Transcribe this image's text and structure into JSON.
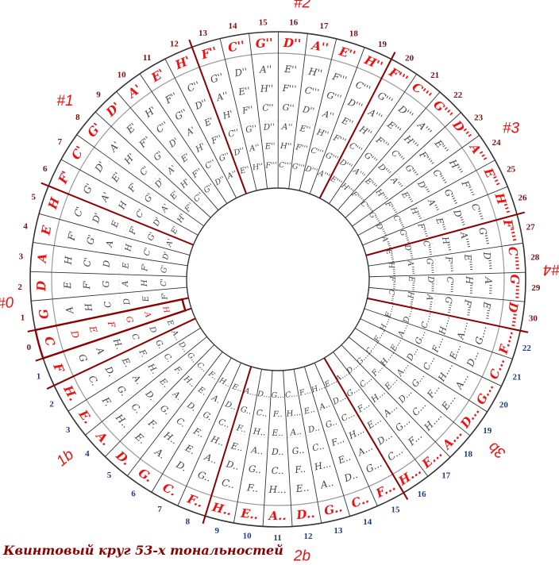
{
  "caption": "Квинтовый круг 53-х тональностей",
  "colors": {
    "tonic": "#ee1111",
    "sharp_number": "#7a1010",
    "flat_number": "#1f3a7a",
    "divider": "#8b0000",
    "line": "#333333",
    "note": "#444444"
  },
  "group_labels": [
    {
      "text": "#2",
      "angle": 5
    },
    {
      "text": "#1",
      "angle": 310
    },
    {
      "text": "#3",
      "angle": 57
    },
    {
      "text": "4#4",
      "angle": 88
    },
    {
      "text": "3b",
      "angle": 128
    },
    {
      "text": "2b",
      "angle": 175
    },
    {
      "text": "1b",
      "angle": 230
    },
    {
      "text": "4#0",
      "angle": 265
    }
  ],
  "sectors": [
    {
      "number": "0",
      "side": "sharp",
      "tonic": "C",
      "notes": [
        "D",
        "E",
        "F",
        "G",
        "A",
        "H"
      ]
    },
    {
      "number": "1",
      "side": "sharp",
      "tonic": "G",
      "notes": [
        "A",
        "H",
        "C",
        "D",
        "E",
        "F'"
      ]
    },
    {
      "number": "2",
      "side": "sharp",
      "tonic": "D",
      "notes": [
        "E",
        "F'",
        "G",
        "A",
        "H",
        "C'"
      ]
    },
    {
      "number": "3",
      "side": "sharp",
      "tonic": "A",
      "notes": [
        "H",
        "C'",
        "D",
        "E",
        "F'",
        "G'"
      ]
    },
    {
      "number": "4",
      "side": "sharp",
      "tonic": "E",
      "notes": [
        "F'",
        "G'",
        "A",
        "H",
        "C'",
        "D'"
      ]
    },
    {
      "number": "5",
      "side": "sharp",
      "tonic": "H",
      "notes": [
        "C'",
        "D'",
        "E",
        "F'",
        "G'",
        "A'"
      ]
    },
    {
      "number": "6",
      "side": "sharp",
      "tonic": "F'",
      "notes": [
        "G'",
        "A'",
        "H",
        "C'",
        "D'",
        "E'"
      ]
    },
    {
      "number": "7",
      "side": "sharp",
      "tonic": "C'",
      "notes": [
        "D'",
        "E'",
        "F'",
        "G'",
        "A'",
        "H'"
      ]
    },
    {
      "number": "8",
      "side": "sharp",
      "tonic": "G'",
      "notes": [
        "A'",
        "H'",
        "C'",
        "D'",
        "E'",
        "F''"
      ]
    },
    {
      "number": "9",
      "side": "sharp",
      "tonic": "D'",
      "notes": [
        "E'",
        "F''",
        "G'",
        "A'",
        "H'",
        "C''"
      ]
    },
    {
      "number": "10",
      "side": "sharp",
      "tonic": "A'",
      "notes": [
        "H'",
        "C''",
        "D'",
        "E'",
        "F''",
        "G''"
      ]
    },
    {
      "number": "11",
      "side": "sharp",
      "tonic": "E'",
      "notes": [
        "F''",
        "G''",
        "A'",
        "H'",
        "C''",
        "D''"
      ]
    },
    {
      "number": "12",
      "side": "sharp",
      "tonic": "H'",
      "notes": [
        "C''",
        "D''",
        "E'",
        "F''",
        "G''",
        "A''"
      ]
    },
    {
      "number": "13",
      "side": "sharp",
      "tonic": "F''",
      "notes": [
        "G''",
        "A''",
        "H'",
        "C''",
        "D''",
        "E''"
      ]
    },
    {
      "number": "14",
      "side": "sharp",
      "tonic": "C''",
      "notes": [
        "D''",
        "E''",
        "F''",
        "G''",
        "A''",
        "H''"
      ]
    },
    {
      "number": "15",
      "side": "sharp",
      "tonic": "G''",
      "notes": [
        "A''",
        "H''",
        "C''",
        "D''",
        "E''",
        "F'''"
      ]
    },
    {
      "number": "16",
      "side": "sharp",
      "tonic": "D''",
      "notes": [
        "E''",
        "F'''",
        "G''",
        "A''",
        "H''",
        "C'''"
      ]
    },
    {
      "number": "17",
      "side": "sharp",
      "tonic": "A''",
      "notes": [
        "H''",
        "C'''",
        "D''",
        "E''",
        "F'''",
        "G'''"
      ]
    },
    {
      "number": "18",
      "side": "sharp",
      "tonic": "E''",
      "notes": [
        "F'''",
        "G'''",
        "A''",
        "H''",
        "C'''",
        "D'''"
      ]
    },
    {
      "number": "19",
      "side": "sharp",
      "tonic": "H''",
      "notes": [
        "C'''",
        "D'''",
        "E''",
        "F'''",
        "G'''",
        "A'''"
      ]
    },
    {
      "number": "20",
      "side": "sharp",
      "tonic": "F'''",
      "notes": [
        "G'''",
        "A'''",
        "H''",
        "C'''",
        "D'''",
        "E'''"
      ]
    },
    {
      "number": "21",
      "side": "sharp",
      "tonic": "C'''",
      "notes": [
        "D'''",
        "E'''",
        "F'''",
        "G'''",
        "A'''",
        "H'''"
      ]
    },
    {
      "number": "22",
      "side": "sharp",
      "tonic": "G'''",
      "notes": [
        "A'''",
        "H'''",
        "C'''",
        "D'''",
        "E'''",
        "F''''"
      ]
    },
    {
      "number": "23",
      "side": "sharp",
      "tonic": "D'''",
      "notes": [
        "E'''",
        "F''''",
        "G'''",
        "A'''",
        "H'''",
        "C''''"
      ]
    },
    {
      "number": "24",
      "side": "sharp",
      "tonic": "A'''",
      "notes": [
        "H'''",
        "C''''",
        "D'''",
        "E'''",
        "F''''",
        "G''''"
      ]
    },
    {
      "number": "25",
      "side": "sharp",
      "tonic": "E'''",
      "notes": [
        "F''''",
        "G''''",
        "A'''",
        "H'''",
        "C''''",
        "D''''"
      ]
    },
    {
      "number": "26",
      "side": "sharp",
      "tonic": "H'''",
      "notes": [
        "C''''",
        "D''''",
        "E'''",
        "F''''",
        "G''''",
        "A''''"
      ]
    },
    {
      "number": "27",
      "side": "sharp",
      "tonic": "F''''",
      "notes": [
        "G''''",
        "A''''",
        "H'''",
        "C''''",
        "D''''",
        "E''''"
      ]
    },
    {
      "number": "28",
      "side": "sharp",
      "tonic": "C''''",
      "notes": [
        "D''''",
        "E''''",
        "F''''",
        "G''''",
        "A''''",
        "H''''"
      ]
    },
    {
      "number": "29",
      "side": "sharp",
      "tonic": "G''''",
      "notes": [
        "A''''",
        "H''''",
        "C''''",
        "D''''",
        "E''''",
        "F''''"
      ]
    },
    {
      "number": "30",
      "side": "sharp",
      "tonic": "D''''",
      "notes": [
        "E''''",
        "F''''",
        "G''''",
        "A''''",
        "H''''",
        "C''''"
      ]
    },
    {
      "number": "22",
      "side": "flat",
      "tonic": "F....",
      "notes": [
        "G....",
        "A....",
        "H....",
        "C....",
        "D....",
        "E...."
      ]
    },
    {
      "number": "21",
      "side": "flat",
      "tonic": "C...",
      "notes": [
        "D...",
        "E...",
        "F....",
        "G...",
        "A...",
        "H...."
      ]
    },
    {
      "number": "20",
      "side": "flat",
      "tonic": "G...",
      "notes": [
        "A...",
        "H....",
        "C...",
        "D...",
        "E...",
        "F...."
      ]
    },
    {
      "number": "19",
      "side": "flat",
      "tonic": "D...",
      "notes": [
        "E...",
        "F...",
        "G...",
        "A...",
        "H....",
        "C...."
      ]
    },
    {
      "number": "18",
      "side": "flat",
      "tonic": "A...",
      "notes": [
        "H....",
        "C...",
        "D...",
        "E...",
        "F...",
        "G...."
      ]
    },
    {
      "number": "17",
      "side": "flat",
      "tonic": "E...",
      "notes": [
        "F...",
        "G...",
        "A...",
        "H...",
        "C...",
        "D...."
      ]
    },
    {
      "number": "16",
      "side": "flat",
      "tonic": "H...",
      "notes": [
        "C...",
        "D...",
        "E...",
        "F...",
        "G...",
        "A...."
      ]
    },
    {
      "number": "15",
      "side": "flat",
      "tonic": "F...",
      "notes": [
        "G...",
        "A...",
        "H...",
        "C...",
        "D...",
        "E..."
      ]
    },
    {
      "number": "14",
      "side": "flat",
      "tonic": "C..",
      "notes": [
        "D..",
        "E..",
        "F...",
        "G..",
        "A..",
        "H..."
      ]
    },
    {
      "number": "13",
      "side": "flat",
      "tonic": "G..",
      "notes": [
        "A..",
        "H...",
        "C..",
        "D..",
        "E..",
        "F..."
      ]
    },
    {
      "number": "12",
      "side": "flat",
      "tonic": "D..",
      "notes": [
        "E..",
        "F..",
        "G..",
        "A..",
        "H...",
        "C..."
      ]
    },
    {
      "number": "11",
      "side": "flat",
      "tonic": "A..",
      "notes": [
        "H...",
        "C..",
        "D..",
        "E..",
        "F..",
        "G..."
      ]
    },
    {
      "number": "10",
      "side": "flat",
      "tonic": "E..",
      "notes": [
        "F..",
        "G..",
        "A..",
        "H..",
        "C..",
        "D..."
      ]
    },
    {
      "number": "9",
      "side": "flat",
      "tonic": "H..",
      "notes": [
        "C..",
        "D..",
        "E..",
        "F..",
        "G..",
        "A..."
      ]
    },
    {
      "number": "8",
      "side": "flat",
      "tonic": "F..",
      "notes": [
        "G..",
        "A..",
        "H..",
        "C..",
        "D..",
        "E.."
      ]
    },
    {
      "number": "7",
      "side": "flat",
      "tonic": "C.",
      "notes": [
        "D.",
        "E.",
        "F..",
        "G.",
        "A.",
        "H.."
      ]
    },
    {
      "number": "6",
      "side": "flat",
      "tonic": "G.",
      "notes": [
        "A.",
        "H..",
        "C.",
        "D.",
        "E.",
        "F.."
      ]
    },
    {
      "number": "5",
      "side": "flat",
      "tonic": "D.",
      "notes": [
        "E.",
        "F.",
        "G.",
        "A.",
        "H..",
        "C.."
      ]
    },
    {
      "number": "4",
      "side": "flat",
      "tonic": "A.",
      "notes": [
        "H..",
        "C.",
        "D.",
        "E.",
        "F.",
        "G.."
      ]
    },
    {
      "number": "3",
      "side": "flat",
      "tonic": "E.",
      "notes": [
        "F.",
        "G.",
        "A.",
        "H.",
        "C.",
        "D.."
      ]
    },
    {
      "number": "2",
      "side": "flat",
      "tonic": "H.",
      "notes": [
        "C.",
        "D.",
        "E.",
        "F.",
        "G.",
        "A.."
      ]
    },
    {
      "number": "1",
      "side": "flat",
      "tonic": "F",
      "notes": [
        "G",
        "A",
        "H.",
        "C",
        "D",
        "E"
      ]
    }
  ]
}
